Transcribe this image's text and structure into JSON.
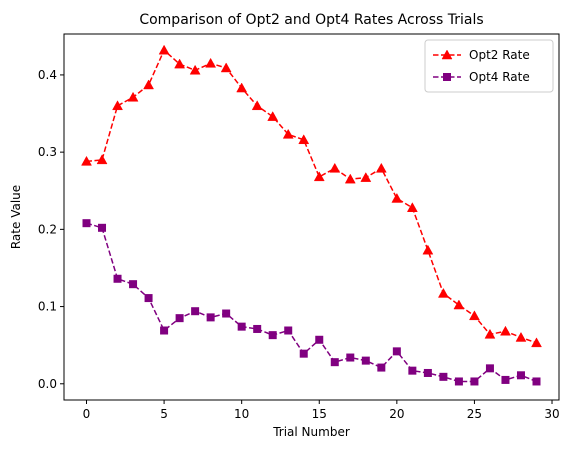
{
  "chart_data": {
    "type": "line",
    "title": "Comparison of Opt2 and Opt4 Rates Across Trials",
    "xlabel": "Trial Number",
    "ylabel": "Rate Value",
    "xlim": [
      -1.45,
      30.45
    ],
    "ylim": [
      -0.021,
      0.453
    ],
    "xticks": [
      0,
      5,
      10,
      15,
      20,
      25,
      30
    ],
    "yticks": [
      0.0,
      0.1,
      0.2,
      0.3,
      0.4
    ],
    "ytick_labels": [
      "0.0",
      "0.1",
      "0.2",
      "0.3",
      "0.4"
    ],
    "grid": false,
    "legend_position": "top-right",
    "x": [
      0,
      1,
      2,
      3,
      4,
      5,
      6,
      7,
      8,
      9,
      10,
      11,
      12,
      13,
      14,
      15,
      16,
      17,
      18,
      19,
      20,
      21,
      22,
      23,
      24,
      25,
      26,
      27,
      28,
      29
    ],
    "series": [
      {
        "name": "Opt2 Rate",
        "color": "#ff0000",
        "marker": "triangle",
        "linestyle": "dashed",
        "values": [
          0.288,
          0.29,
          0.36,
          0.371,
          0.387,
          0.432,
          0.414,
          0.406,
          0.415,
          0.409,
          0.383,
          0.36,
          0.346,
          0.323,
          0.316,
          0.268,
          0.279,
          0.265,
          0.267,
          0.279,
          0.24,
          0.228,
          0.173,
          0.117,
          0.102,
          0.088,
          0.064,
          0.068,
          0.06,
          0.053
        ]
      },
      {
        "name": "Opt4 Rate",
        "color": "#800080",
        "marker": "square",
        "linestyle": "dashed",
        "values": [
          0.208,
          0.202,
          0.136,
          0.129,
          0.111,
          0.069,
          0.085,
          0.094,
          0.086,
          0.091,
          0.074,
          0.071,
          0.063,
          0.069,
          0.039,
          0.057,
          0.028,
          0.034,
          0.03,
          0.021,
          0.042,
          0.017,
          0.014,
          0.009,
          0.003,
          0.003,
          0.02,
          0.005,
          0.011,
          0.003
        ]
      }
    ]
  }
}
